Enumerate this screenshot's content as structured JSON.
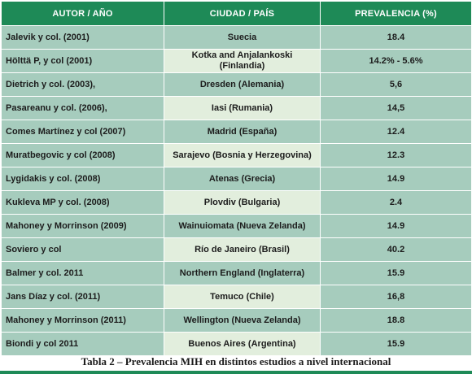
{
  "table": {
    "headers": {
      "author": "AUTOR / AÑO",
      "city": "CIUDAD / PAÍS",
      "prevalence": "PREVALENCIA (%)"
    },
    "rows": [
      {
        "author": "Jalevik y col. (2001)",
        "city": "Suecia",
        "prevalence": "18.4"
      },
      {
        "author": "Hölttä P, y col (2001)",
        "city": "Kotka and Anjalankoski (Finlandia)",
        "prevalence": "14.2% - 5.6%"
      },
      {
        "author": "Dietrich y col. (2003),",
        "city": "Dresden (Alemania)",
        "prevalence": "5,6"
      },
      {
        "author": "Pasareanu y col. (2006),",
        "city": "Iasi (Rumania)",
        "prevalence": "14,5"
      },
      {
        "author": "Comes Martínez y col (2007)",
        "city": "Madrid (España)",
        "prevalence": "12.4"
      },
      {
        "author": "Muratbegovic y col (2008)",
        "city": "Sarajevo (Bosnia y Herzegovina)",
        "prevalence": "12.3"
      },
      {
        "author": "Lygidakis y col. (2008)",
        "city": "Atenas (Grecia)",
        "prevalence": "14.9"
      },
      {
        "author": "Kukleva MP y col. (2008)",
        "city": "Plovdiv (Bulgaria)",
        "prevalence": "2.4"
      },
      {
        "author": "Mahoney y Morrinson (2009)",
        "city": "Wainuiomata (Nueva Zelanda)",
        "prevalence": "14.9"
      },
      {
        "author": "Soviero y col",
        "city": "Río de Janeiro (Brasil)",
        "prevalence": "40.2"
      },
      {
        "author": "Balmer y col. 2011",
        "city": "Northern England (Inglaterra)",
        "prevalence": "15.9"
      },
      {
        "author": "Jans Díaz y col. (2011)",
        "city": "Temuco (Chile)",
        "prevalence": "16,8"
      },
      {
        "author": "Mahoney y Morrinson (2011)",
        "city": "Wellington (Nueva Zelanda)",
        "prevalence": "18.8"
      },
      {
        "author": "Biondi y col 2011",
        "city": "Buenos Aires (Argentina)",
        "prevalence": "15.9"
      }
    ]
  },
  "caption": "Tabla 2 – Prevalencia MIH en distintos estudios a nivel internacional",
  "colors": {
    "header_bg": "#1e8a57",
    "row_bg": "#a6ccbd",
    "city_alt_bg": "#e2eedd",
    "bottom_bar": "#1e8a57"
  }
}
